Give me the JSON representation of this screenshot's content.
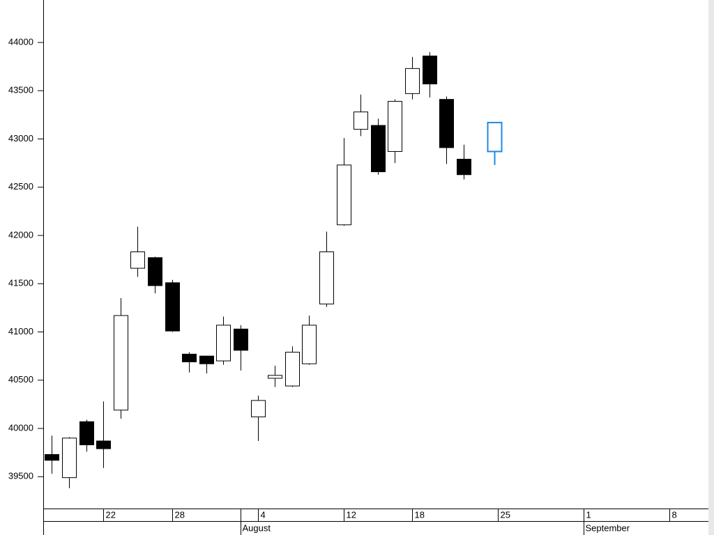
{
  "chart_data": {
    "type": "candlestick",
    "x": [
      0,
      1,
      2,
      3,
      4,
      5,
      6,
      7,
      8,
      9,
      10,
      11,
      12,
      13,
      14,
      15,
      16,
      17,
      18,
      19,
      20,
      21,
      22,
      23,
      24,
      25.8
    ],
    "open": [
      39730,
      39490,
      40070,
      39870,
      40190,
      41660,
      41770,
      41510,
      40770,
      40750,
      40700,
      41030,
      40120,
      40520,
      40440,
      40670,
      41290,
      42110,
      43100,
      43140,
      42870,
      43470,
      43860,
      43410,
      42790,
      42870
    ],
    "high": [
      39925,
      39910,
      40090,
      40280,
      41350,
      42090,
      41780,
      41540,
      40790,
      40750,
      41160,
      41070,
      40340,
      40650,
      40850,
      41170,
      42040,
      43010,
      43460,
      43210,
      43410,
      43850,
      43900,
      43440,
      42940,
      43170
    ],
    "low": [
      39530,
      39380,
      39760,
      39590,
      40100,
      41570,
      41400,
      41000,
      40580,
      40570,
      40660,
      40600,
      39870,
      40430,
      40430,
      40660,
      41260,
      42100,
      43030,
      42630,
      42750,
      43410,
      43430,
      42740,
      42580,
      42730
    ],
    "close": [
      39670,
      39900,
      39830,
      39790,
      41170,
      41830,
      41480,
      41010,
      40690,
      40670,
      41070,
      40810,
      40290,
      40550,
      40790,
      41070,
      41830,
      42730,
      43280,
      42660,
      43390,
      43730,
      43570,
      42910,
      42630,
      43170
    ],
    "up_color": "#ffffff",
    "down_color": "#000000",
    "last_color": "#1e88e5",
    "xlim": [
      -0.5,
      38.6
    ],
    "xticks": [
      {
        "value": 3,
        "label": "22"
      },
      {
        "value": 7,
        "label": "28"
      },
      {
        "value": 12,
        "label": "4"
      },
      {
        "value": 17,
        "label": "12"
      },
      {
        "value": 21,
        "label": "18"
      },
      {
        "value": 26,
        "label": "25"
      },
      {
        "value": 31,
        "label": "1"
      },
      {
        "value": 36,
        "label": "8"
      }
    ],
    "month_ticks": [
      {
        "value": 11,
        "label": "August"
      },
      {
        "value": 31,
        "label": "September"
      }
    ],
    "ylim": [
      39170,
      44440
    ],
    "yticks": [
      39500,
      40000,
      40500,
      41000,
      41500,
      42000,
      42500,
      43000,
      43500,
      44000
    ]
  }
}
